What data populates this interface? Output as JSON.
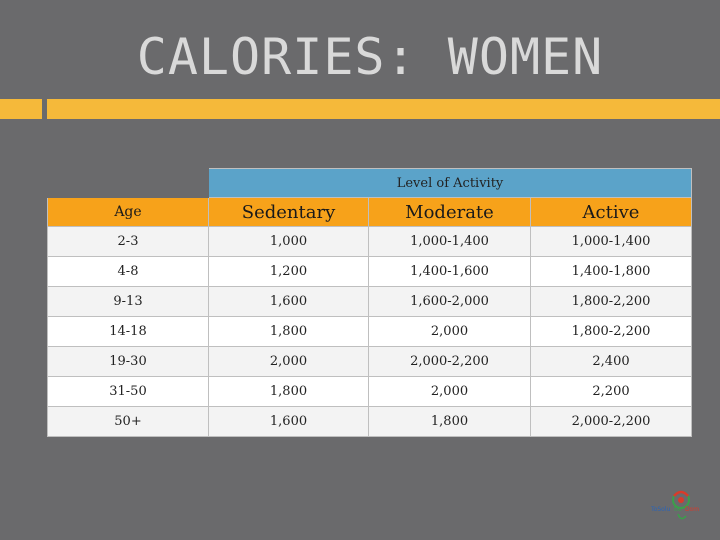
{
  "slide": {
    "title": "CALORIES: WOMEN"
  },
  "table": {
    "group_header": "Level of Activity",
    "columns": [
      "Age",
      "Sedentary",
      "Moderate",
      "Active"
    ],
    "rows": [
      [
        "2-3",
        "1,000",
        "1,000-1,400",
        "1,000-1,400"
      ],
      [
        "4-8",
        "1,200",
        "1,400-1,600",
        "1,400-1,800"
      ],
      [
        "9-13",
        "1,600",
        "1,600-2,000",
        "1,800-2,200"
      ],
      [
        "14-18",
        "1,800",
        "2,000",
        "1,800-2,200"
      ],
      [
        "19-30",
        "2,000",
        "2,000-2,200",
        "2,400"
      ],
      [
        "31-50",
        "1,800",
        "2,000",
        "2,200"
      ],
      [
        "50+",
        "1,600",
        "1,800",
        "2,000-2,200"
      ]
    ]
  },
  "colors": {
    "background": "#6a6a6c",
    "accent_bar": "#f5b93a",
    "group_header": "#5ba3c9",
    "column_header": "#f7a21a"
  },
  "logo": {
    "icon": "organization-logo-icon"
  }
}
